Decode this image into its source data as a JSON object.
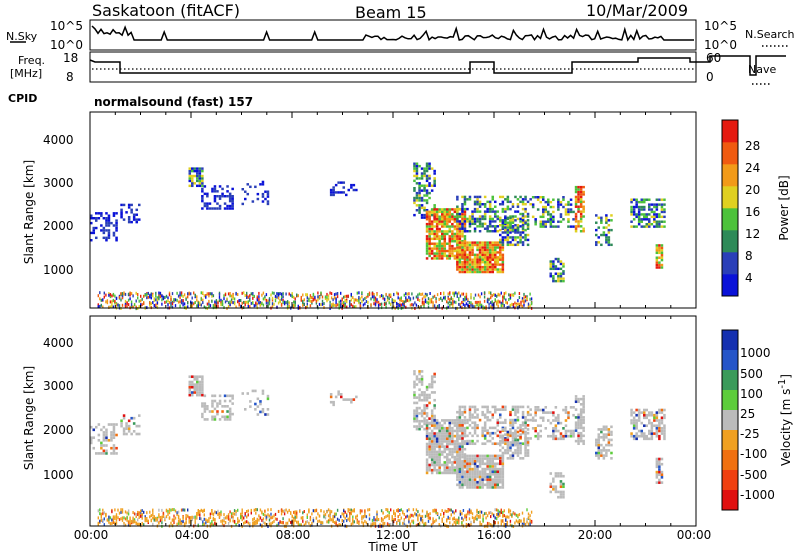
{
  "header": {
    "station": "Saskatoon (fitACF)",
    "beam": "Beam 15",
    "date": "10/Mar/2009"
  },
  "noise_panel": {
    "left_label": "N.Sky",
    "right_label": "N.Search",
    "ticks": [
      "10^5",
      "10^0"
    ]
  },
  "freq_panel": {
    "left_label_1": "Freq.",
    "left_label_2": "[MHz]",
    "left_ticks": [
      "18",
      "8"
    ],
    "right_ticks": [
      "60",
      "0"
    ],
    "right_label": "Nave"
  },
  "cpid": {
    "label": "CPID",
    "program": "normalsound (fast) 157"
  },
  "x_axis": {
    "ticks": [
      "00:00",
      "04:00",
      "08:00",
      "12:00",
      "16:00",
      "20:00",
      "00:00"
    ],
    "label": "Time UT"
  },
  "colors": {
    "power": [
      "#0a12d8",
      "#2a3fb8",
      "#2e8a58",
      "#4cc23a",
      "#e0d020",
      "#f29a18",
      "#f05a10",
      "#e51a10"
    ],
    "velocity": [
      "#1530b0",
      "#2555c8",
      "#3a9a5a",
      "#5ccc3a",
      "#bbbbbb",
      "#f0a020",
      "#f07010",
      "#f04010",
      "#e01010"
    ]
  },
  "chart_data": [
    {
      "type": "heatmap",
      "name_key": "power",
      "ylabel": "Slant Range [km]",
      "xlabel": "",
      "x_range_hours": [
        0,
        24
      ],
      "ylim": [
        180,
        4500
      ],
      "y_ticks": [
        "1000",
        "2000",
        "3000",
        "4000"
      ],
      "colorbar_label": "Power [dB]",
      "colorbar_ticks": [
        "4",
        "8",
        "12",
        "16",
        "20",
        "24",
        "28"
      ]
    },
    {
      "type": "heatmap",
      "name_key": "velocity",
      "ylabel": "Slant Range [km]",
      "xlabel": "Time UT",
      "x_range_hours": [
        0,
        24
      ],
      "ylim": [
        180,
        4500
      ],
      "y_ticks": [
        "1000",
        "2000",
        "3000",
        "4000"
      ],
      "colorbar_label": "Velocity [m s",
      "colorbar_label_sup": "-1",
      "colorbar_label_end": "]",
      "colorbar_ticks": [
        "1000",
        "500",
        "100",
        "25",
        "-25",
        "-100",
        "-500",
        "-1000"
      ]
    }
  ]
}
